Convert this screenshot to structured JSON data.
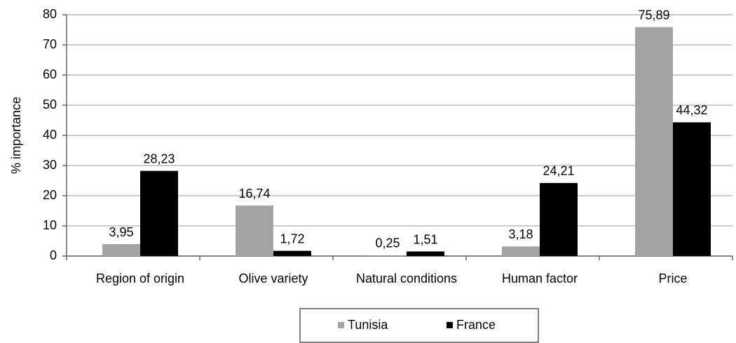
{
  "chart_data": {
    "type": "bar",
    "ylabel": "% importance",
    "categories": [
      "Region of origin",
      "Olive variety",
      "Natural conditions",
      "Human factor",
      "Price"
    ],
    "series": [
      {
        "name": "Tunisia",
        "color": "#a3a3a3",
        "values": [
          3.95,
          16.74,
          0.25,
          3.18,
          75.89
        ],
        "value_labels": [
          "3,95",
          "16,74",
          "0,25",
          "3,18",
          "75,89"
        ]
      },
      {
        "name": "France",
        "color": "#000000",
        "values": [
          28.23,
          1.72,
          1.51,
          24.21,
          44.32
        ],
        "value_labels": [
          "28,23",
          "1,72",
          "1,51",
          "24,21",
          "44,32"
        ]
      }
    ],
    "ylim": [
      0,
      80
    ],
    "yticks": [
      0,
      10,
      20,
      30,
      40,
      50,
      60,
      70,
      80
    ],
    "grid": true,
    "legend": "bottom"
  }
}
